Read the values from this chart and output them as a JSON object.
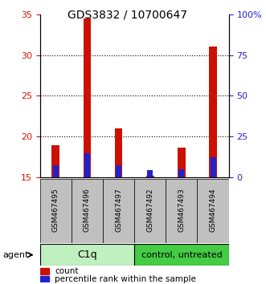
{
  "title": "GDS3832 / 10700647",
  "samples": [
    "GSM467495",
    "GSM467496",
    "GSM467497",
    "GSM467492",
    "GSM467493",
    "GSM467494"
  ],
  "count_values": [
    19.0,
    34.5,
    21.0,
    15.2,
    18.7,
    31.0
  ],
  "percentile_values": [
    16.5,
    18.0,
    16.5,
    15.9,
    16.0,
    17.5
  ],
  "ymin": 15,
  "ymax": 35,
  "yticks_left": [
    15,
    20,
    25,
    30,
    35
  ],
  "right_ticks_pos": [
    15,
    20,
    25,
    30,
    35
  ],
  "right_ticks_labels": [
    "0",
    "25",
    "50",
    "75",
    "100%"
  ],
  "count_color": "#CC1100",
  "percentile_color": "#2222CC",
  "ylabel_left_color": "#CC1100",
  "ylabel_right_color": "#2222CC",
  "label_area_color": "#c0c0c0",
  "group_c1q_color": "#c0f0c0",
  "group_ctrl_color": "#44cc44",
  "bar_width": 0.25,
  "pct_bar_width": 0.18
}
